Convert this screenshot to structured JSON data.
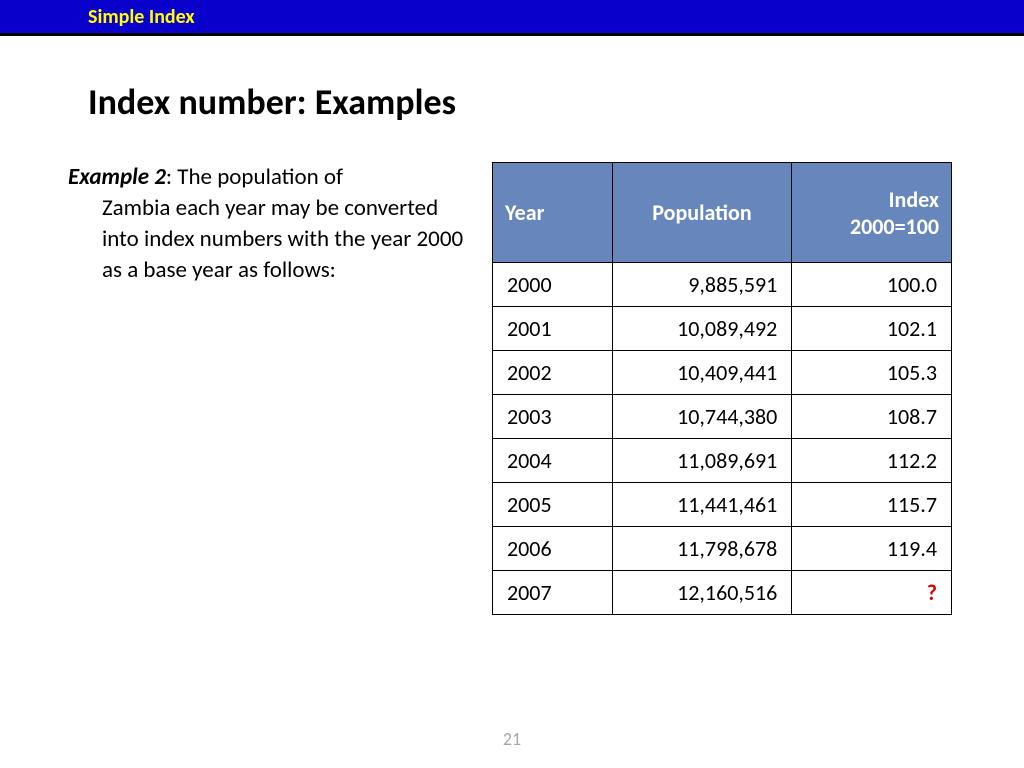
{
  "header": {
    "label": "Simple Index"
  },
  "title": "Index number: Examples",
  "example": {
    "lead": "Example 2",
    "text": ": The population of Zambia each year may be converted into index numbers with the year 2000 as a base year as follows:"
  },
  "table": {
    "columns": [
      "Year",
      "Population",
      "Index 2000=100"
    ],
    "header_bg": "#6786bb",
    "header_fg": "#ffffff",
    "border_color": "#000000",
    "cell_fontsize": 22,
    "header_fontsize": 22,
    "rows": [
      {
        "year": "2000",
        "population": "9,885,591",
        "index": "100.0"
      },
      {
        "year": "2001",
        "population": "10,089,492",
        "index": "102.1"
      },
      {
        "year": "2002",
        "population": "10,409,441",
        "index": "105.3"
      },
      {
        "year": "2003",
        "population": "10,744,380",
        "index": "108.7"
      },
      {
        "year": "2004",
        "population": "11,089,691",
        "index": "112.2"
      },
      {
        "year": "2005",
        "population": "11,441,461",
        "index": "115.7"
      },
      {
        "year": "2006",
        "population": "11,798,678",
        "index": "119.4"
      },
      {
        "year": "2007",
        "population": "12,160,516",
        "index": "?"
      }
    ],
    "question_color": "#d40000"
  },
  "page_number": "21",
  "colors": {
    "header_bar": "#0a00cc",
    "header_text": "#ffff00",
    "page_num": "#a6a6a6",
    "body_bg": "#ffffff"
  }
}
